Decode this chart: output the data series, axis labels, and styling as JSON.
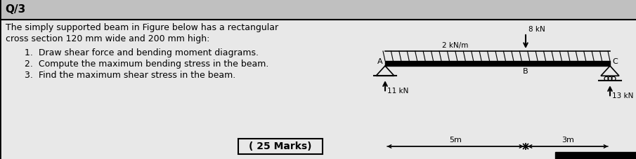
{
  "title": "Q/3",
  "text_line1": "The simply supported beam in Figure below has a rectangular",
  "text_line2": "cross section 120 mm wide and 200 mm high:",
  "item1": "Draw shear force and bending moment diagrams.",
  "item2": "Compute the maximum bending stress in the beam.",
  "item3": "Find the maximum shear stress in the beam.",
  "footer": "( 25 Marks)",
  "label_A": "A",
  "label_B": "B",
  "label_C": "C",
  "load_dist_label": "2 kN/m",
  "load_point_label": "8 kN",
  "react_left_label": "11 kN",
  "react_right_label": "13 kN",
  "dim_left_label": "5m",
  "dim_right_label": "3m",
  "gray_header": "#c0c0c0",
  "gray_body": "#e8e8e8",
  "black": "#000000",
  "white": "#ffffff"
}
